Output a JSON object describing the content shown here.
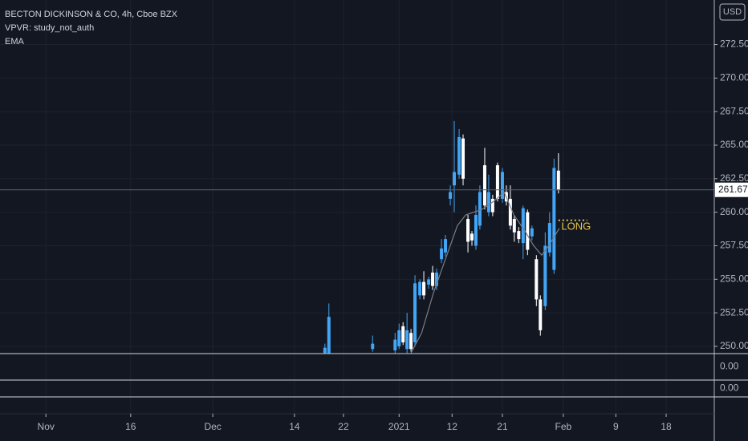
{
  "chart_data": {
    "type": "candlestick",
    "title": "BECTON DICKINSON & CO, 4h, Cboe BZX",
    "indicators": [
      "VPVR: study_not_auth",
      "EMA"
    ],
    "currency": "USD",
    "up_color": "#42a5f5",
    "down_color": "#ffffff",
    "candles": {
      "x": [
        73.6,
        74.5,
        84.4,
        89.5,
        90.4,
        91.3,
        92.2,
        93.1,
        94.0,
        95.1,
        96.0,
        97.1,
        98.0,
        98.9,
        100.0,
        100.9,
        102.0,
        102.9,
        104.0,
        104.9,
        106.0,
        106.9,
        107.8,
        108.7,
        109.8,
        110.7,
        111.6,
        112.7,
        113.8,
        114.7,
        115.6,
        116.5,
        117.5,
        118.5,
        119.5,
        120.5,
        121.5,
        122.4,
        123.5,
        124.5,
        125.5,
        126.5
      ],
      "open": [
        249.5,
        249.5,
        249.8,
        249.7,
        250.0,
        251.5,
        249.8,
        251.0,
        250.3,
        253.8,
        254.8,
        254.6,
        255.5,
        254.5,
        256.5,
        257.0,
        261.0,
        262.0,
        262.8,
        265.5,
        259.5,
        258.4,
        257.5,
        259.0,
        263.5,
        260.0,
        261.0,
        263.5,
        261.0,
        261.5,
        261.0,
        259.5,
        258.6,
        257.7,
        260.0,
        258.2,
        256.5,
        253.5,
        253.0,
        257.0,
        255.7,
        263.1
      ],
      "high": [
        250.2,
        253.2,
        250.8,
        251.0,
        251.7,
        251.8,
        252.5,
        251.3,
        255.3,
        255.0,
        255.6,
        255.2,
        256.0,
        255.8,
        258.0,
        258.3,
        262.0,
        266.8,
        266.2,
        265.8,
        259.8,
        258.6,
        260.5,
        262.0,
        264.8,
        262.8,
        261.3,
        263.7,
        263.3,
        262.0,
        262.0,
        259.8,
        258.9,
        260.5,
        260.2,
        259.0,
        256.8,
        253.8,
        258.5,
        260.0,
        264.0,
        264.4
      ],
      "low": [
        249.4,
        249.4,
        249.6,
        249.5,
        249.8,
        250.1,
        249.5,
        249.6,
        250.0,
        253.5,
        253.5,
        254.3,
        254.2,
        254.2,
        256.2,
        256.7,
        260.5,
        260.0,
        262.5,
        262.0,
        257.0,
        257.5,
        257.2,
        258.7,
        260.2,
        259.7,
        259.7,
        260.8,
        260.7,
        260.5,
        258.7,
        257.8,
        257.7,
        256.5,
        256.8,
        257.9,
        253.0,
        250.8,
        252.7,
        256.7,
        255.4,
        261.4
      ],
      "close": [
        249.9,
        252.2,
        250.2,
        250.5,
        251.2,
        250.3,
        251.2,
        249.8,
        254.7,
        254.8,
        253.8,
        255.0,
        254.5,
        255.5,
        257.3,
        258.0,
        261.5,
        263.0,
        265.6,
        262.5,
        257.8,
        257.9,
        259.8,
        261.5,
        260.5,
        261.5,
        260.0,
        261.0,
        263.0,
        260.8,
        259.0,
        258.5,
        258.0,
        260.3,
        257.2,
        258.8,
        253.5,
        251.2,
        257.5,
        259.2,
        263.3,
        261.67
      ]
    },
    "ema": {
      "color": "#7a7d85",
      "x": [
        93.1,
        95.5,
        98.2,
        100.9,
        103.6,
        105.5,
        109.1,
        111.8,
        114.2,
        116.4,
        119.1,
        120.9,
        122.7,
        124.5,
        126.7
      ],
      "values": [
        249.5,
        251.0,
        254.0,
        256.5,
        259.0,
        259.8,
        260.2,
        260.8,
        261.5,
        259.8,
        258.5,
        257.5,
        256.8,
        257.6,
        258.8
      ]
    },
    "annotation": {
      "text": "LONG",
      "x": 130.5,
      "y": 258.9,
      "line_y": 259.4,
      "line_x": [
        126.5,
        133.0
      ],
      "color": "#e7c649"
    },
    "last_price": 261.67,
    "xlim": [
      0,
      161.8
    ],
    "xticks": [
      {
        "value": 10.4,
        "label": "Nov"
      },
      {
        "value": 29.6,
        "label": "16"
      },
      {
        "value": 48.2,
        "label": "Dec"
      },
      {
        "value": 66.7,
        "label": "14"
      },
      {
        "value": 77.8,
        "label": "22"
      },
      {
        "value": 90.4,
        "label": "2021"
      },
      {
        "value": 102.4,
        "label": "12"
      },
      {
        "value": 113.8,
        "label": "21"
      },
      {
        "value": 127.6,
        "label": "Feb"
      },
      {
        "value": 139.5,
        "label": "9"
      },
      {
        "value": 150.9,
        "label": "18"
      }
    ],
    "ylim": [
      249.46,
      275.82
    ],
    "yticks": [
      {
        "value": 250,
        "label": "250.00"
      },
      {
        "value": 252.5,
        "label": "252.50"
      },
      {
        "value": 255,
        "label": "255.00"
      },
      {
        "value": 257.5,
        "label": "257.50"
      },
      {
        "value": 260,
        "label": "260.00"
      },
      {
        "value": 262.5,
        "label": "262.50"
      },
      {
        "value": 265,
        "label": "265.00"
      },
      {
        "value": 267.5,
        "label": "267.50"
      },
      {
        "value": 270,
        "label": "270.00"
      },
      {
        "value": 272.5,
        "label": "272.50"
      }
    ],
    "grid": true,
    "panes": [
      {
        "yticks": [
          {
            "value": 0,
            "label": "0.00"
          }
        ]
      },
      {
        "yticks": [
          {
            "value": 0,
            "label": "0.00"
          }
        ]
      }
    ]
  }
}
